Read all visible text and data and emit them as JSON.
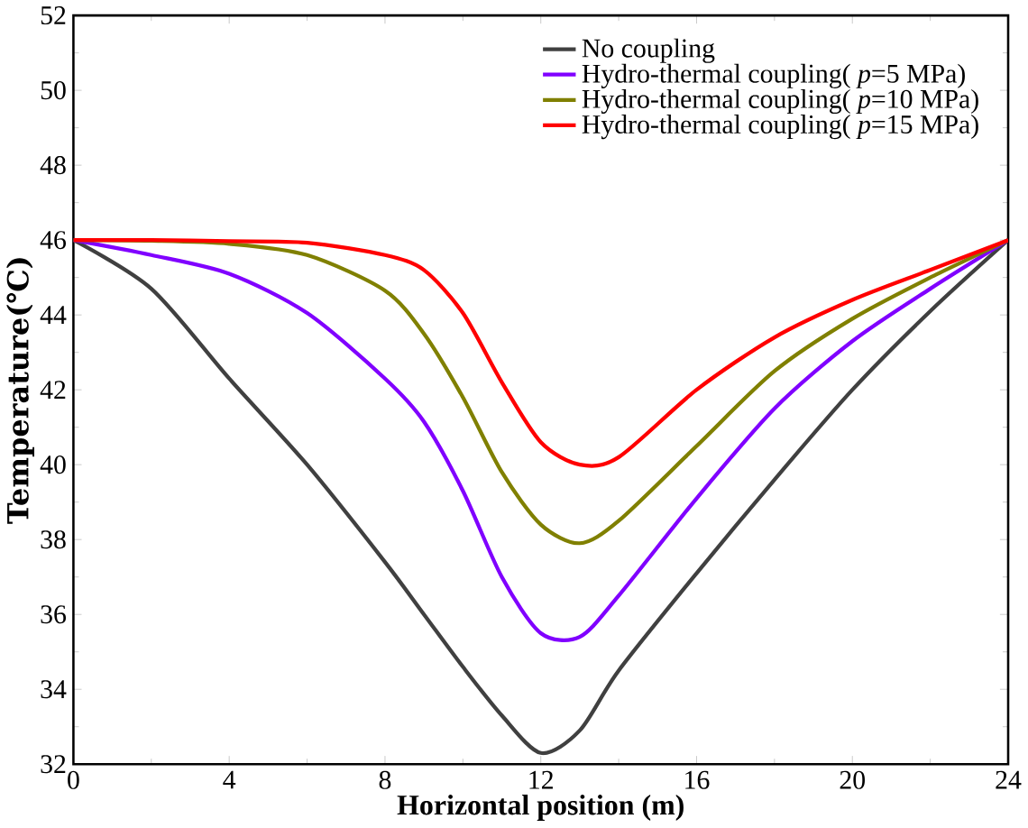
{
  "chart_data": {
    "type": "line",
    "xlabel": "Horizontal position (m)",
    "ylabel": "Temperature(℃)",
    "xlim": [
      0,
      24
    ],
    "ylim": [
      32,
      52
    ],
    "xticks": [
      0,
      4,
      8,
      12,
      16,
      20,
      24
    ],
    "yticks": [
      32,
      34,
      36,
      38,
      40,
      42,
      44,
      46,
      48,
      50,
      52
    ],
    "grid": false,
    "legend": "top right",
    "marker": "none",
    "line_style": "solid",
    "x": [
      0,
      2,
      4,
      6,
      8,
      9,
      10,
      11,
      12,
      13,
      14,
      16,
      18,
      20,
      22,
      24
    ],
    "series": [
      {
        "name": "No coupling",
        "color": "#404040",
        "values": [
          46,
          44.7,
          42.3,
          40.0,
          37.4,
          36.0,
          34.6,
          33.3,
          32.3,
          32.9,
          34.5,
          37.1,
          39.6,
          42.0,
          44.1,
          46
        ]
      },
      {
        "name": "Hydro-thermal coupling( *p*=5 MPa)",
        "color": "#8000ff",
        "values": [
          46,
          45.6,
          45.1,
          44.05,
          42.3,
          41.15,
          39.3,
          37.0,
          35.5,
          35.4,
          36.5,
          39.1,
          41.5,
          43.3,
          44.7,
          46
        ]
      },
      {
        "name": "Hydro-thermal coupling( *p*=10 MPa)",
        "color": "#808000",
        "values": [
          46,
          45.98,
          45.9,
          45.6,
          44.65,
          43.5,
          41.8,
          39.8,
          38.4,
          37.9,
          38.5,
          40.5,
          42.5,
          43.9,
          45.0,
          46
        ]
      },
      {
        "name": "Hydro-thermal coupling( *p*=15 MPa)",
        "color": "#ff0000",
        "values": [
          46,
          46,
          45.97,
          45.93,
          45.6,
          45.2,
          44.05,
          42.2,
          40.6,
          40.0,
          40.2,
          42.0,
          43.4,
          44.4,
          45.2,
          46
        ]
      }
    ]
  }
}
